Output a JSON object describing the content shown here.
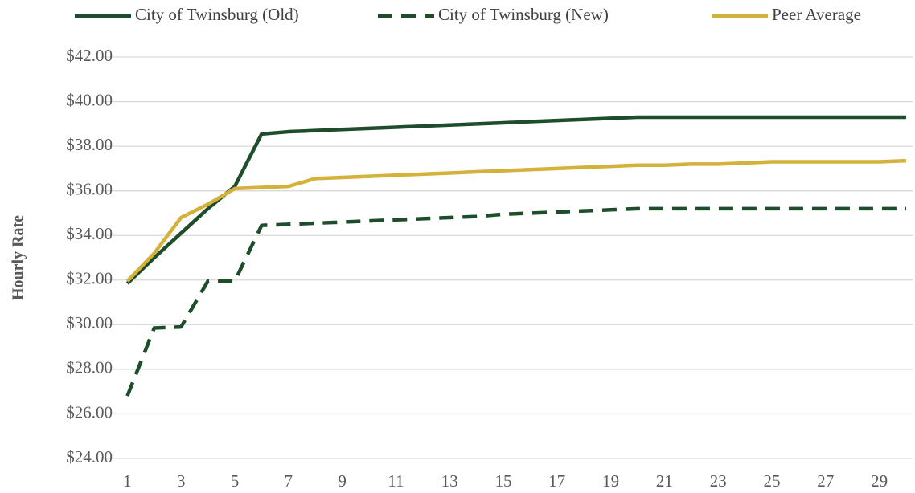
{
  "chart_data": {
    "type": "line",
    "y_label": "Hourly Rate",
    "x": [
      1,
      2,
      3,
      4,
      5,
      6,
      7,
      8,
      9,
      10,
      11,
      12,
      13,
      14,
      15,
      16,
      17,
      18,
      19,
      20,
      21,
      22,
      23,
      24,
      25,
      26,
      27,
      28,
      29,
      30
    ],
    "xlim": [
      0,
      30
    ],
    "xticks": [
      1,
      3,
      5,
      7,
      9,
      11,
      13,
      15,
      17,
      19,
      21,
      23,
      25,
      27,
      29
    ],
    "ylim": [
      24,
      42
    ],
    "yticks": [
      {
        "value": 24,
        "label": "$24.00"
      },
      {
        "value": 26,
        "label": "$26.00"
      },
      {
        "value": 28,
        "label": "$28.00"
      },
      {
        "value": 30,
        "label": "$30.00"
      },
      {
        "value": 32,
        "label": "$32.00"
      },
      {
        "value": 34,
        "label": "$34.00"
      },
      {
        "value": 36,
        "label": "$36.00"
      },
      {
        "value": 38,
        "label": "$38.00"
      },
      {
        "value": 40,
        "label": "$40.00"
      },
      {
        "value": 42,
        "label": "$42.00"
      }
    ],
    "grid": true,
    "legend": "top",
    "series": [
      {
        "name": "City of Twinsburg (Old)",
        "color": "#1e4d2b",
        "style": "solid",
        "values": [
          31.85,
          33.0,
          34.1,
          35.2,
          36.2,
          38.55,
          38.65,
          38.7,
          38.75,
          38.8,
          38.85,
          38.9,
          38.95,
          39.0,
          39.05,
          39.1,
          39.15,
          39.2,
          39.25,
          39.3,
          39.3,
          39.3,
          39.3,
          39.3,
          39.3,
          39.3,
          39.3,
          39.3,
          39.3,
          39.3
        ]
      },
      {
        "name": "City of Twinsburg (New)",
        "color": "#1e4d2b",
        "style": "dashed",
        "values": [
          26.8,
          29.85,
          29.9,
          31.95,
          31.95,
          34.45,
          34.5,
          34.55,
          34.6,
          34.65,
          34.7,
          34.75,
          34.8,
          34.85,
          34.95,
          35.0,
          35.05,
          35.1,
          35.15,
          35.2,
          35.2,
          35.2,
          35.2,
          35.2,
          35.2,
          35.2,
          35.2,
          35.2,
          35.2,
          35.2
        ]
      },
      {
        "name": "Peer Average",
        "color": "#d4b13a",
        "style": "solid",
        "values": [
          31.95,
          33.2,
          34.8,
          35.4,
          36.1,
          36.15,
          36.2,
          36.55,
          36.6,
          36.65,
          36.7,
          36.75,
          36.8,
          36.85,
          36.9,
          36.95,
          37.0,
          37.05,
          37.1,
          37.15,
          37.15,
          37.2,
          37.2,
          37.25,
          37.3,
          37.3,
          37.3,
          37.3,
          37.3,
          37.35
        ]
      }
    ]
  }
}
